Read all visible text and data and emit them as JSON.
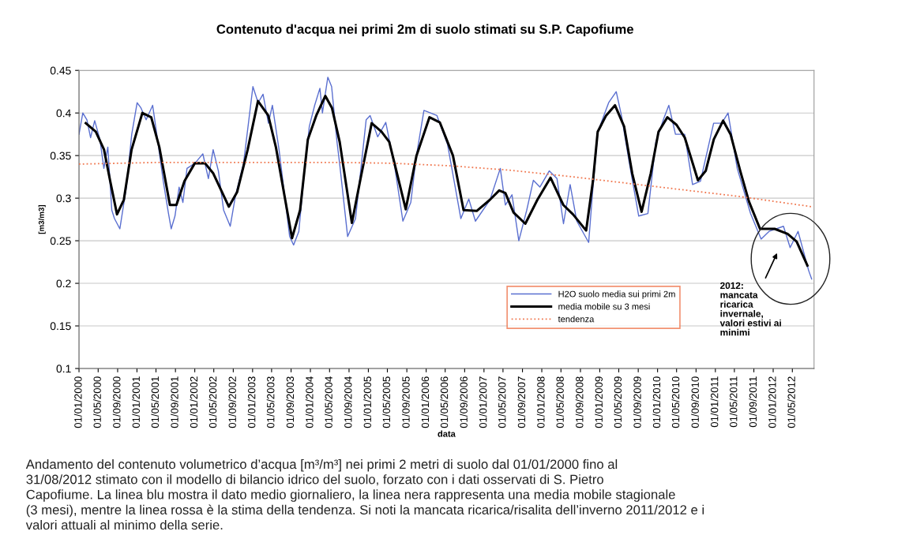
{
  "chart_data": {
    "type": "line",
    "title": "Contenuto d'acqua nei primi 2m di suolo stimati su S.P. Capofiume",
    "xlabel": "data",
    "ylabel": "[m3/m3]",
    "xlim": [
      "2000-01-01",
      "2012-09-15"
    ],
    "ylim": [
      0.1,
      0.45
    ],
    "yticks": [
      0.1,
      0.15,
      0.2,
      0.25,
      0.3,
      0.35,
      0.4,
      0.45
    ],
    "xticks": [
      {
        "value": "2000-01-01",
        "label": "01/01/2000"
      },
      {
        "value": "2000-05-01",
        "label": "01/05/2000"
      },
      {
        "value": "2000-09-01",
        "label": "01/09/2000"
      },
      {
        "value": "2001-01-01",
        "label": "01/01/2001"
      },
      {
        "value": "2001-05-01",
        "label": "01/05/2001"
      },
      {
        "value": "2001-09-01",
        "label": "01/09/2001"
      },
      {
        "value": "2002-01-01",
        "label": "01/01/2002"
      },
      {
        "value": "2002-05-01",
        "label": "01/05/2002"
      },
      {
        "value": "2002-09-01",
        "label": "01/09/2002"
      },
      {
        "value": "2003-01-01",
        "label": "01/01/2003"
      },
      {
        "value": "2003-05-01",
        "label": "01/05/2003"
      },
      {
        "value": "2003-09-01",
        "label": "01/09/2003"
      },
      {
        "value": "2004-01-01",
        "label": "01/01/2004"
      },
      {
        "value": "2004-05-01",
        "label": "01/05/2004"
      },
      {
        "value": "2004-09-01",
        "label": "01/09/2004"
      },
      {
        "value": "2005-01-01",
        "label": "01/01/2005"
      },
      {
        "value": "2005-05-01",
        "label": "01/05/2005"
      },
      {
        "value": "2005-09-01",
        "label": "01/09/2005"
      },
      {
        "value": "2006-01-01",
        "label": "01/01/2006"
      },
      {
        "value": "2006-05-01",
        "label": "01/05/2006"
      },
      {
        "value": "2006-09-01",
        "label": "01/09/2006"
      },
      {
        "value": "2007-01-01",
        "label": "01/01/2007"
      },
      {
        "value": "2007-05-01",
        "label": "01/05/2007"
      },
      {
        "value": "2007-09-01",
        "label": "01/09/2007"
      },
      {
        "value": "2008-01-01",
        "label": "01/01/2008"
      },
      {
        "value": "2008-05-01",
        "label": "01/05/2008"
      },
      {
        "value": "2008-09-01",
        "label": "01/09/2008"
      },
      {
        "value": "2009-01-01",
        "label": "01/01/2009"
      },
      {
        "value": "2009-05-01",
        "label": "01/05/2009"
      },
      {
        "value": "2009-09-01",
        "label": "01/09/2009"
      },
      {
        "value": "2010-01-01",
        "label": "01/01/2010"
      },
      {
        "value": "2010-05-01",
        "label": "01/05/2010"
      },
      {
        "value": "2010-09-01",
        "label": "01/09/2010"
      },
      {
        "value": "2011-01-01",
        "label": "01/01/2011"
      },
      {
        "value": "2011-05-01",
        "label": "01/05/2011"
      },
      {
        "value": "2011-09-01",
        "label": "01/09/2011"
      },
      {
        "value": "2012-01-01",
        "label": "01/01/2012"
      },
      {
        "value": "2012-05-01",
        "label": "01/05/2012"
      }
    ],
    "grid": "y",
    "legend": "bottom",
    "marker": "none",
    "series": [
      {
        "name": "H2O suolo media sui primi 2m",
        "color": "#5a6fd0",
        "line_style": "solid",
        "x": [
          "2000-01-01",
          "2000-01-25",
          "2000-02-20",
          "2000-03-14",
          "2000-04-09",
          "2000-05-12",
          "2000-06-06",
          "2000-07-01",
          "2000-07-26",
          "2000-08-12",
          "2000-09-15",
          "2000-10-26",
          "2000-11-29",
          "2001-01-02",
          "2001-01-26",
          "2001-02-28",
          "2001-04-10",
          "2001-05-13",
          "2001-06-16",
          "2001-07-18",
          "2001-08-05",
          "2001-08-29",
          "2001-09-24",
          "2001-10-18",
          "2001-11-13",
          "2002-01-02",
          "2002-02-21",
          "2002-03-28",
          "2002-04-27",
          "2002-05-30",
          "2002-07-02",
          "2002-08-13",
          "2002-09-16",
          "2002-11-05",
          "2003-01-03",
          "2003-02-05",
          "2003-03-08",
          "2003-04-11",
          "2003-05-06",
          "2003-06-17",
          "2003-08-23",
          "2003-09-17",
          "2003-10-20",
          "2003-11-23",
          "2003-12-25",
          "2004-01-28",
          "2004-03-01",
          "2004-03-17",
          "2004-04-20",
          "2004-05-14",
          "2004-06-17",
          "2004-07-04",
          "2004-08-23",
          "2004-10-12",
          "2004-12-18",
          "2005-01-12",
          "2005-03-01",
          "2005-04-21",
          "2005-06-18",
          "2005-08-07",
          "2005-09-26",
          "2005-10-29",
          "2005-12-18",
          "2006-03-10",
          "2006-05-16",
          "2006-08-08",
          "2006-09-27",
          "2006-11-08",
          "2007-02-08",
          "2007-04-14",
          "2007-05-16",
          "2007-06-27",
          "2007-08-09",
          "2007-09-28",
          "2007-11-09",
          "2007-12-20",
          "2008-02-17",
          "2008-04-06",
          "2008-05-17",
          "2008-06-28",
          "2008-08-09",
          "2008-10-23",
          "2008-11-18",
          "2008-12-20",
          "2009-02-26",
          "2009-04-15",
          "2009-05-18",
          "2009-07-07",
          "2009-09-04",
          "2009-11-01",
          "2009-12-21",
          "2010-02-10",
          "2010-03-13",
          "2010-04-24",
          "2010-06-21",
          "2010-08-10",
          "2010-09-29",
          "2010-12-21",
          "2011-02-10",
          "2011-03-22",
          "2011-05-19",
          "2011-08-11",
          "2011-10-17",
          "2011-12-06",
          "2012-03-06",
          "2012-04-17",
          "2012-06-06",
          "2012-08-12",
          "2012-08-31"
        ],
        "values": [
          0.375,
          0.4,
          0.392,
          0.371,
          0.391,
          0.369,
          0.335,
          0.36,
          0.286,
          0.276,
          0.264,
          0.313,
          0.375,
          0.412,
          0.406,
          0.392,
          0.409,
          0.366,
          0.32,
          0.283,
          0.264,
          0.279,
          0.313,
          0.295,
          0.335,
          0.341,
          0.352,
          0.323,
          0.357,
          0.332,
          0.286,
          0.267,
          0.304,
          0.341,
          0.431,
          0.412,
          0.422,
          0.388,
          0.409,
          0.357,
          0.255,
          0.245,
          0.261,
          0.329,
          0.384,
          0.409,
          0.429,
          0.4,
          0.442,
          0.431,
          0.366,
          0.34,
          0.255,
          0.276,
          0.392,
          0.397,
          0.372,
          0.389,
          0.335,
          0.273,
          0.295,
          0.347,
          0.403,
          0.397,
          0.363,
          0.276,
          0.299,
          0.273,
          0.298,
          0.335,
          0.292,
          0.304,
          0.25,
          0.286,
          0.321,
          0.313,
          0.332,
          0.323,
          0.27,
          0.316,
          0.273,
          0.248,
          0.31,
          0.378,
          0.412,
          0.425,
          0.397,
          0.341,
          0.279,
          0.282,
          0.366,
          0.394,
          0.409,
          0.375,
          0.375,
          0.316,
          0.32,
          0.388,
          0.388,
          0.4,
          0.335,
          0.282,
          0.252,
          0.261,
          0.267,
          0.242,
          0.261,
          0.215,
          0.205
        ]
      },
      {
        "name": "media mobile su 3 mesi",
        "color": "#000000",
        "line_style": "solid",
        "x": [
          "2000-02-13",
          "2000-04-16",
          "2000-06-07",
          "2000-07-16",
          "2000-08-28",
          "2000-10-10",
          "2000-11-28",
          "2001-02-04",
          "2001-04-01",
          "2001-05-22",
          "2001-07-28",
          "2001-09-07",
          "2001-10-28",
          "2002-01-01",
          "2002-03-07",
          "2002-04-28",
          "2002-08-04",
          "2002-09-25",
          "2002-12-01",
          "2003-02-04",
          "2003-04-10",
          "2003-05-28",
          "2003-09-07",
          "2003-10-28",
          "2003-12-16",
          "2004-02-07",
          "2004-04-04",
          "2004-05-16",
          "2004-07-04",
          "2004-09-19",
          "2004-11-16",
          "2005-01-22",
          "2005-03-25",
          "2005-05-13",
          "2005-08-25",
          "2005-11-01",
          "2006-01-22",
          "2006-03-28",
          "2006-06-19",
          "2006-08-25",
          "2006-11-16",
          "2007-02-07",
          "2007-04-07",
          "2007-05-16",
          "2007-07-07",
          "2007-09-19",
          "2007-12-04",
          "2008-02-25",
          "2008-05-16",
          "2008-07-16",
          "2008-10-07",
          "2008-11-19",
          "2008-12-19",
          "2009-02-10",
          "2009-04-07",
          "2009-06-04",
          "2009-07-25",
          "2009-09-22",
          "2009-11-19",
          "2010-01-07",
          "2010-03-04",
          "2010-05-01",
          "2010-06-22",
          "2010-09-13",
          "2010-11-01",
          "2010-12-22",
          "2011-02-19",
          "2011-04-07",
          "2011-06-07",
          "2011-08-01",
          "2011-10-10",
          "2012-01-10",
          "2012-04-01",
          "2012-05-28",
          "2012-08-04"
        ],
        "values": [
          0.388,
          0.378,
          0.357,
          0.32,
          0.281,
          0.298,
          0.357,
          0.4,
          0.395,
          0.36,
          0.292,
          0.292,
          0.32,
          0.341,
          0.341,
          0.329,
          0.29,
          0.307,
          0.357,
          0.414,
          0.397,
          0.36,
          0.253,
          0.286,
          0.369,
          0.397,
          0.42,
          0.406,
          0.366,
          0.271,
          0.326,
          0.388,
          0.378,
          0.366,
          0.287,
          0.35,
          0.395,
          0.389,
          0.35,
          0.286,
          0.285,
          0.298,
          0.309,
          0.306,
          0.283,
          0.27,
          0.298,
          0.324,
          0.292,
          0.281,
          0.262,
          0.32,
          0.378,
          0.397,
          0.409,
          0.384,
          0.329,
          0.284,
          0.329,
          0.378,
          0.395,
          0.386,
          0.371,
          0.321,
          0.332,
          0.369,
          0.391,
          0.375,
          0.332,
          0.296,
          0.264,
          0.264,
          0.258,
          0.249,
          0.221
        ]
      },
      {
        "name": "tendenza",
        "color": "#f07850",
        "line_style": "dotted",
        "x": [
          "2000-01-01",
          "2001-06-01",
          "2003-01-01",
          "2004-06-01",
          "2005-06-01",
          "2006-06-01",
          "2007-06-01",
          "2008-06-01",
          "2009-06-01",
          "2010-06-01",
          "2011-06-01",
          "2012-08-31"
        ],
        "values": [
          0.34,
          0.342,
          0.342,
          0.342,
          0.341,
          0.338,
          0.333,
          0.326,
          0.318,
          0.31,
          0.302,
          0.29
        ]
      }
    ],
    "annotations": [
      "2012:\nmancata\nricarica\ninvernale,\nvalori estivi ai\nminimi",
      "Andamento del contenuto volumetrico d’acqua [m³/m³] nei primi 2 metri di suolo dal 01/01/2000 fino al\n31/08/2012 stimato con il modello di bilancio idrico del suolo, forzato con i dati osservati di S. Pietro\nCapofiume. La linea blu mostra il dato medio giornaliero, la linea nera rappresenta una media mobile stagionale\n(3 mesi), mentre la linea rossa è la stima della tendenza. Si noti la mancata ricarica/risalita dell’inverno 2011/2012 e i\nvalori attuali al minimo della serie."
    ]
  }
}
